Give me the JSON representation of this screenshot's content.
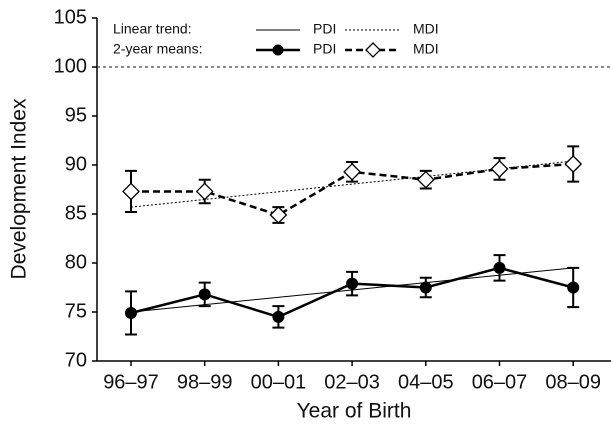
{
  "chart_data": {
    "type": "line",
    "x_label": "Year of Birth",
    "y_label": "Development Index",
    "categories": [
      "96–97",
      "98–99",
      "00–01",
      "02–03",
      "04–05",
      "06–07",
      "08–09"
    ],
    "ylim": [
      70,
      105
    ],
    "yticks": [
      70,
      75,
      80,
      85,
      90,
      95,
      100,
      105
    ],
    "reference_line": 100,
    "legend_titles": [
      "Linear trend:",
      "2-year means:"
    ],
    "series": [
      {
        "name": "PDI",
        "color": "#000000",
        "marker": "circle",
        "values": [
          74.9,
          76.8,
          74.5,
          77.9,
          77.5,
          79.5,
          77.5
        ],
        "errors": [
          2.2,
          1.2,
          1.1,
          1.2,
          1.0,
          1.3,
          2.0
        ],
        "trend": [
          75.0,
          79.5
        ]
      },
      {
        "name": "MDI",
        "color": "#000000",
        "marker": "diamond",
        "values": [
          87.3,
          87.3,
          84.9,
          89.3,
          88.5,
          89.6,
          90.1
        ],
        "errors": [
          2.1,
          1.2,
          0.8,
          1.0,
          0.9,
          1.1,
          1.8
        ],
        "trend": [
          85.7,
          90.4
        ]
      }
    ]
  }
}
